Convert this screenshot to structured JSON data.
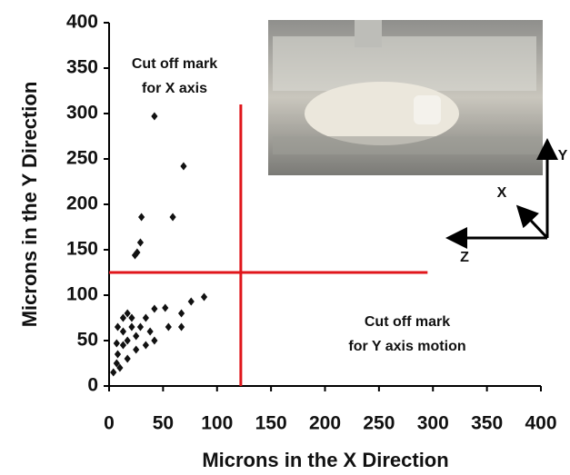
{
  "chart_data": {
    "type": "scatter",
    "x_label": "Microns in the X Direction",
    "y_label": "Microns in the Y Direction",
    "xlim": [
      0,
      400
    ],
    "xticks": [
      0,
      50,
      100,
      150,
      200,
      250,
      300,
      350,
      400
    ],
    "ylim": [
      0,
      400
    ],
    "yticks": [
      0,
      50,
      100,
      150,
      200,
      250,
      300,
      350,
      400
    ],
    "color": "#111111",
    "x": [
      42,
      30,
      59,
      69,
      29,
      26,
      24,
      88,
      76,
      67,
      52,
      55,
      67,
      42,
      34,
      34,
      25,
      17,
      13,
      8,
      21,
      17,
      13,
      8,
      7,
      4,
      10,
      25,
      21,
      29,
      13,
      7,
      38,
      42,
      17
    ],
    "values": [
      297,
      186,
      186,
      242,
      158,
      147,
      144,
      98,
      93,
      80,
      86,
      65,
      65,
      85,
      75,
      45,
      55,
      80,
      75,
      65,
      65,
      50,
      45,
      35,
      25,
      15,
      20,
      40,
      75,
      65,
      60,
      47,
      60,
      50,
      30
    ],
    "cutoff_color": "#e0161b",
    "cutoff_x": {
      "x": 122,
      "y_range": [
        0,
        310
      ]
    },
    "cutoff_y": {
      "y": 125,
      "x_range": [
        0,
        295
      ]
    },
    "annotations": [
      "Cut off mark",
      "for X axis",
      "Cut off mark",
      "for Y axis motion"
    ],
    "inset_axis_labels": [
      "X",
      "Y",
      "Z"
    ]
  }
}
